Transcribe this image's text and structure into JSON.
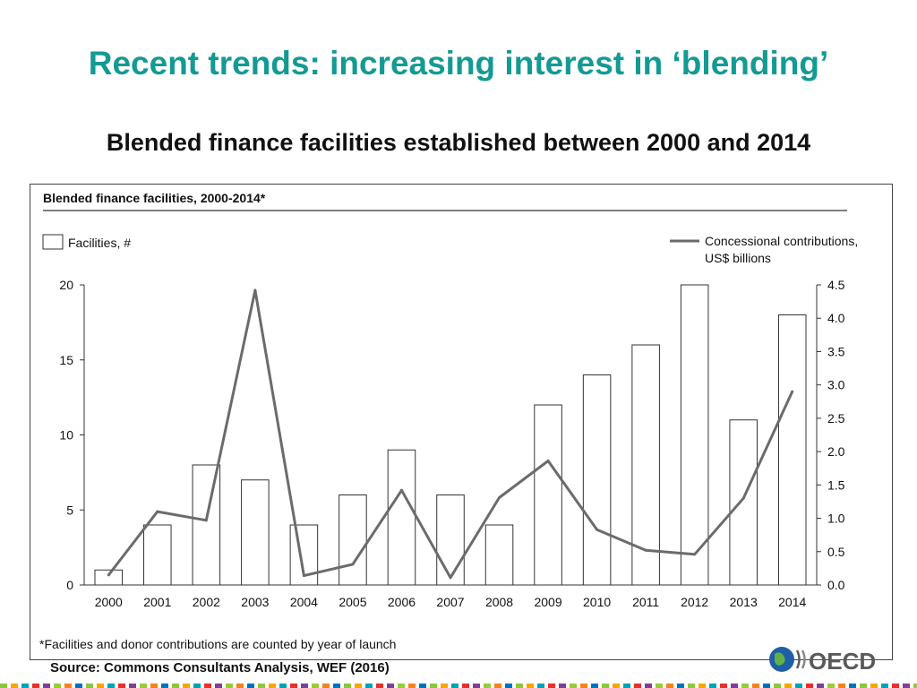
{
  "slide": {
    "title": "Recent trends: increasing interest in ‘blending’",
    "subtitle": "Blended finance facilities established between 2000 and 2014",
    "source": "Source: Commons Consultants Analysis, WEF (2016)",
    "logo_text": "OECD"
  },
  "colors": {
    "title": "#139a93",
    "line": "#6b6b6b",
    "bar_stroke": "#333333",
    "strip": [
      "#8cc63f",
      "#f7a600",
      "#00a3b4",
      "#e4312b",
      "#7f3f98",
      "#9aca3c",
      "#f58220",
      "#0072bc"
    ]
  },
  "chart_data": {
    "type": "bar",
    "title": "Blended finance facilities, 2000-2014*",
    "footnote": "*Facilities and donor contributions are counted by year of launch",
    "categories": [
      "2000",
      "2001",
      "2002",
      "2003",
      "2004",
      "2005",
      "2006",
      "2007",
      "2008",
      "2009",
      "2010",
      "2011",
      "2012",
      "2013",
      "2014"
    ],
    "left_axis": {
      "ylim": [
        0,
        20
      ],
      "ticks": [
        0,
        5,
        10,
        15,
        20
      ]
    },
    "right_axis": {
      "ylim": [
        0,
        4.5
      ],
      "ticks": [
        "0.0",
        "0.5",
        "1.0",
        "1.5",
        "2.0",
        "2.5",
        "3.0",
        "3.5",
        "4.0",
        "4.5"
      ]
    },
    "series": [
      {
        "name": "Facilities, #",
        "type": "bar",
        "axis": "left",
        "values": [
          1,
          4,
          8,
          7,
          4,
          6,
          9,
          6,
          4,
          12,
          14,
          16,
          20,
          11,
          18
        ]
      },
      {
        "name": "Concessional contributions, US$ billions",
        "type": "line",
        "axis": "right",
        "values": [
          0.15,
          1.1,
          0.97,
          4.42,
          0.14,
          0.31,
          1.42,
          0.11,
          1.31,
          1.86,
          0.83,
          0.52,
          0.46,
          1.3,
          2.9
        ]
      }
    ],
    "legend_position": "top",
    "grid": false
  }
}
